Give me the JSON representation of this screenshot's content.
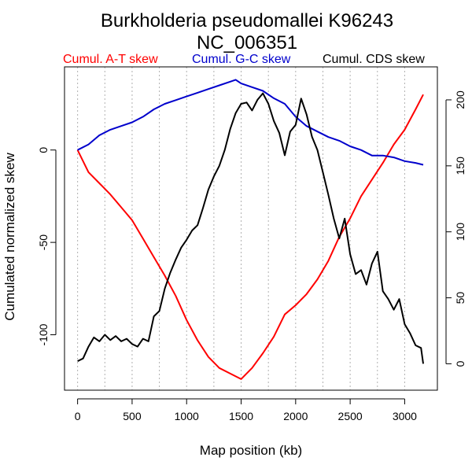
{
  "chart_data": {
    "type": "line",
    "title": "Burkholderia pseudomallei K96243",
    "subtitle": "NC_006351",
    "xlabel": "Map position (kb)",
    "ylabel": "Cumulated normalized skew",
    "xlim": [
      -120,
      3300
    ],
    "ylim": [
      -130,
      45
    ],
    "y2lim": [
      -20,
      225
    ],
    "x_ticks": [
      0,
      500,
      1000,
      1500,
      2000,
      2500,
      3000
    ],
    "y_ticks": [
      -100,
      -50,
      0
    ],
    "y2_ticks": [
      0,
      50,
      100,
      150,
      200
    ],
    "vgrid": [
      0,
      250,
      500,
      750,
      1000,
      1250,
      1500,
      1750,
      2000,
      2250,
      2500,
      2750,
      3000
    ],
    "grid": "vertical dotted",
    "legend_position": "top",
    "series": [
      {
        "name": "Cumul. A-T skew",
        "color": "#ff0000",
        "axis": "left",
        "x": [
          0,
          100,
          200,
          300,
          400,
          500,
          600,
          700,
          800,
          900,
          1000,
          1100,
          1200,
          1300,
          1400,
          1500,
          1600,
          1700,
          1800,
          1900,
          2000,
          2100,
          2200,
          2300,
          2400,
          2500,
          2600,
          2700,
          2800,
          2900,
          3000,
          3100,
          3170
        ],
        "y": [
          0,
          -12,
          -18,
          -24,
          -31,
          -38,
          -48,
          -58,
          -68,
          -79,
          -92,
          -103,
          -112,
          -118,
          -121,
          -124,
          -118,
          -110,
          -101,
          -89,
          -84,
          -78,
          -70,
          -60,
          -47,
          -37,
          -25,
          -16,
          -7,
          3,
          11,
          22,
          30
        ]
      },
      {
        "name": "Cumul. G-C skew",
        "color": "#0000cc",
        "axis": "left",
        "x": [
          0,
          100,
          200,
          300,
          400,
          500,
          600,
          700,
          800,
          900,
          1000,
          1100,
          1200,
          1300,
          1400,
          1450,
          1500,
          1600,
          1700,
          1800,
          1900,
          2000,
          2100,
          2200,
          2300,
          2400,
          2500,
          2600,
          2700,
          2800,
          2900,
          3000,
          3100,
          3170
        ],
        "y": [
          0,
          3,
          8,
          11,
          13,
          15,
          18,
          22,
          25,
          27,
          29,
          31,
          33,
          35,
          37,
          38,
          36,
          34,
          32,
          28,
          25,
          18,
          13,
          10,
          7,
          5,
          2,
          0,
          -3,
          -3,
          -4,
          -6,
          -7,
          -8
        ]
      },
      {
        "name": "Cumul. CDS skew",
        "color": "#000000",
        "axis": "right",
        "x": [
          0,
          50,
          100,
          150,
          200,
          250,
          300,
          350,
          400,
          450,
          500,
          550,
          600,
          650,
          700,
          750,
          800,
          850,
          900,
          950,
          1000,
          1050,
          1100,
          1150,
          1200,
          1250,
          1300,
          1350,
          1400,
          1450,
          1500,
          1550,
          1600,
          1650,
          1700,
          1750,
          1800,
          1850,
          1900,
          1950,
          2000,
          2050,
          2100,
          2150,
          2200,
          2250,
          2300,
          2350,
          2400,
          2450,
          2500,
          2550,
          2600,
          2650,
          2700,
          2750,
          2800,
          2850,
          2900,
          2950,
          3000,
          3050,
          3100,
          3150,
          3170
        ],
        "y": [
          2,
          4,
          13,
          20,
          17,
          22,
          18,
          21,
          17,
          19,
          15,
          13,
          19,
          17,
          36,
          40,
          57,
          69,
          79,
          88,
          94,
          101,
          105,
          118,
          132,
          142,
          150,
          162,
          178,
          190,
          197,
          198,
          192,
          200,
          205,
          197,
          184,
          175,
          158,
          176,
          181,
          201,
          189,
          172,
          162,
          145,
          128,
          110,
          95,
          110,
          83,
          68,
          71,
          60,
          76,
          85,
          55,
          49,
          41,
          49,
          30,
          23,
          14,
          12,
          0
        ]
      }
    ]
  }
}
